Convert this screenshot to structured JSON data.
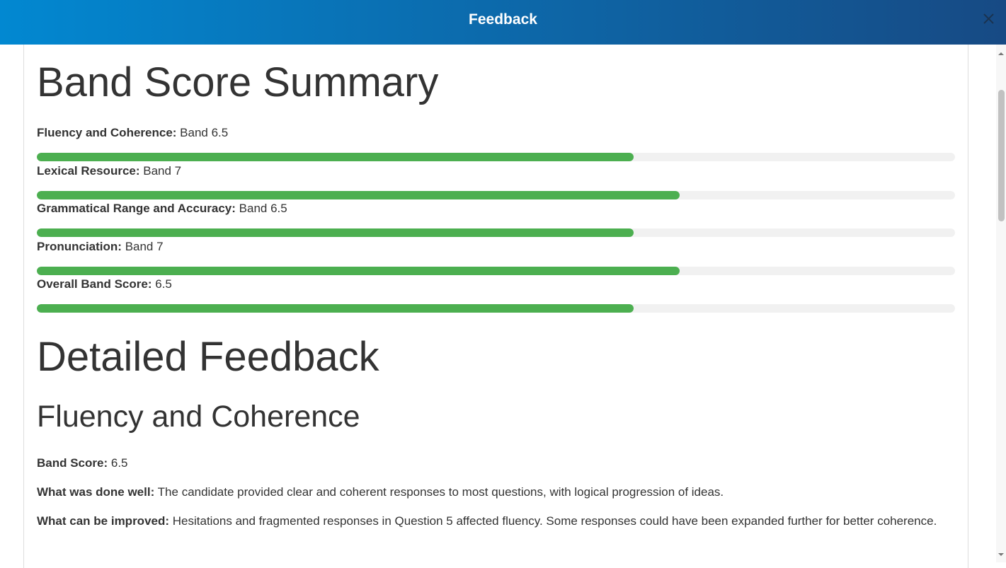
{
  "header": {
    "title": "Feedback"
  },
  "summary": {
    "title": "Band Score Summary",
    "range": [
      0,
      10
    ],
    "items": [
      {
        "label": "Fluency and Coherence:",
        "text": "Band 6.5",
        "score": 6.5
      },
      {
        "label": "Lexical Resource:",
        "text": "Band 7",
        "score": 7
      },
      {
        "label": "Grammatical Range and Accuracy:",
        "text": "Band 6.5",
        "score": 6.5
      },
      {
        "label": "Pronunciation:",
        "text": "Band 7",
        "score": 7
      },
      {
        "label": "Overall Band Score:",
        "text": "6.5",
        "score": 6.5
      }
    ]
  },
  "detailed": {
    "title": "Detailed Feedback",
    "sections": [
      {
        "title": "Fluency and Coherence",
        "items": [
          {
            "label": "Band Score:",
            "text": "6.5"
          },
          {
            "label": "What was done well:",
            "text": "The candidate provided clear and coherent responses to most questions, with logical progression of ideas."
          },
          {
            "label": "What can be improved:",
            "text": "Hesitations and fragmented responses in Question 5 affected fluency. Some responses could have been expanded further for better coherence."
          }
        ]
      }
    ]
  }
}
